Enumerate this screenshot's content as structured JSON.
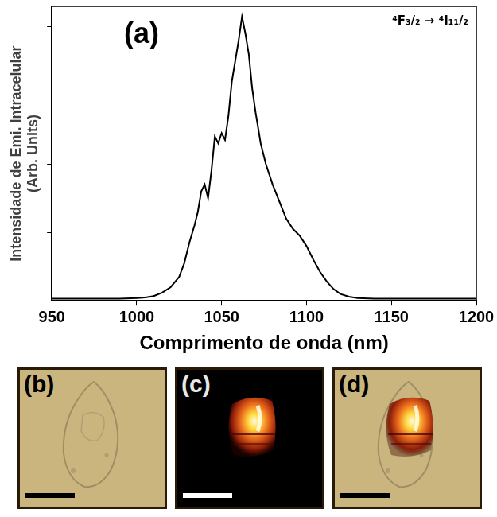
{
  "chart_data": {
    "type": "line",
    "x_label": "Comprimento de onda (nm)",
    "y_label": [
      "Intensidade de Emi. Intracelular",
      "(Arb. Units)"
    ],
    "annotations": [
      "(a)",
      "⁴F₃/₂ → ⁴I₁₁/₂"
    ],
    "x": [
      950,
      960,
      970,
      980,
      990,
      1000,
      1005,
      1010,
      1015,
      1020,
      1025,
      1028,
      1031,
      1034,
      1036,
      1038,
      1040,
      1042,
      1044,
      1046,
      1048,
      1050,
      1052,
      1054,
      1056,
      1058,
      1060,
      1062,
      1064,
      1066,
      1068,
      1070,
      1073,
      1076,
      1080,
      1084,
      1088,
      1092,
      1096,
      1100,
      1104,
      1108,
      1112,
      1116,
      1120,
      1125,
      1130,
      1140,
      1150,
      1175,
      1200
    ],
    "values": [
      0.03,
      0.03,
      0.03,
      0.03,
      0.03,
      0.04,
      0.05,
      0.07,
      0.12,
      0.2,
      0.35,
      0.55,
      0.85,
      1.1,
      1.3,
      1.6,
      1.7,
      1.5,
      1.9,
      2.4,
      2.3,
      2.45,
      2.35,
      2.7,
      3.2,
      3.5,
      3.8,
      4.15,
      3.9,
      3.6,
      3.1,
      2.75,
      2.3,
      2.0,
      1.7,
      1.45,
      1.2,
      1.05,
      0.95,
      0.8,
      0.6,
      0.42,
      0.28,
      0.17,
      0.1,
      0.06,
      0.04,
      0.03,
      0.03,
      0.03,
      0.03
    ],
    "color": "#000000",
    "marker": "none",
    "line_style": "solid",
    "xlim": [
      950,
      1200
    ],
    "xticks": [
      950,
      1000,
      1050,
      1100,
      1150,
      1200
    ],
    "ylim": [
      0,
      4.3
    ],
    "yticks": [
      0,
      1,
      2,
      3,
      4
    ],
    "tick_labels": "x",
    "grid": false
  },
  "panels": [
    "(b)",
    "(c)",
    "(d)"
  ]
}
